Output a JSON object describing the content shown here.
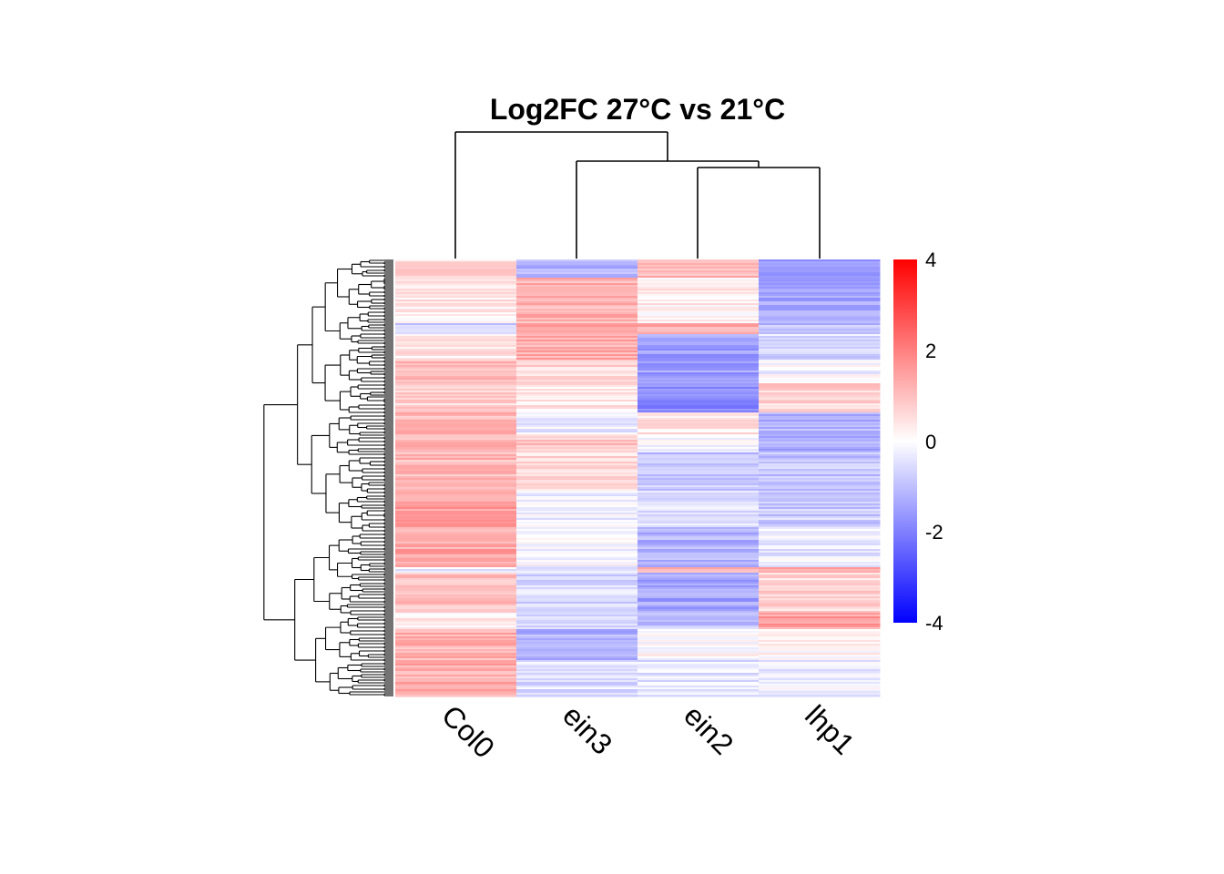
{
  "chart_data": {
    "type": "heatmap",
    "title": "Log2FC 27°C vs 21°C",
    "columns": [
      "Col0",
      "ein3",
      "ein2",
      "lhp1"
    ],
    "color_scale": {
      "min": -4,
      "max": 4,
      "low_color": "#0000ff",
      "mid_color": "#ffffff",
      "high_color": "#ff0000",
      "ticks": [
        "4",
        "2",
        "0",
        "-2",
        "-4"
      ]
    },
    "row_count": 240,
    "column_dendrogram": "(Col0, (ein3, (ein2, lhp1)))",
    "row_dendrogram": "shown on left",
    "row_blocks": [
      {
        "rows": 10,
        "values": [
          0.6,
          -1.2,
          1.1,
          -1.6
        ]
      },
      {
        "rows": 25,
        "values": [
          0.3,
          1.2,
          0.3,
          -1.4
        ]
      },
      {
        "rows": 6,
        "values": [
          -0.8,
          1.4,
          1.2,
          -1.0
        ]
      },
      {
        "rows": 14,
        "values": [
          0.4,
          1.3,
          -1.5,
          -0.6
        ]
      },
      {
        "rows": 13,
        "values": [
          1.0,
          0.6,
          -1.5,
          -0.1
        ]
      },
      {
        "rows": 16,
        "values": [
          0.7,
          0.4,
          -1.9,
          0.7
        ]
      },
      {
        "rows": 12,
        "values": [
          1.1,
          -0.3,
          0.4,
          -1.2
        ]
      },
      {
        "rows": 10,
        "values": [
          1.2,
          0.9,
          0.0,
          -1.3
        ]
      },
      {
        "rows": 21,
        "values": [
          1.1,
          0.6,
          -0.9,
          -0.9
        ]
      },
      {
        "rows": 20,
        "values": [
          1.5,
          -0.2,
          -0.6,
          -0.8
        ]
      },
      {
        "rows": 22,
        "values": [
          1.4,
          -0.1,
          -1.2,
          -0.3
        ]
      },
      {
        "rows": 3,
        "values": [
          -0.3,
          -0.5,
          1.0,
          1.6
        ]
      },
      {
        "rows": 22,
        "values": [
          1.0,
          -0.6,
          -1.4,
          0.7
        ]
      },
      {
        "rows": 9,
        "values": [
          0.3,
          -0.5,
          -0.9,
          1.5
        ]
      },
      {
        "rows": 17,
        "values": [
          1.2,
          -1.2,
          0.1,
          0.2
        ]
      },
      {
        "rows": 20,
        "values": [
          1.3,
          -0.5,
          -0.4,
          -0.2
        ]
      }
    ]
  }
}
